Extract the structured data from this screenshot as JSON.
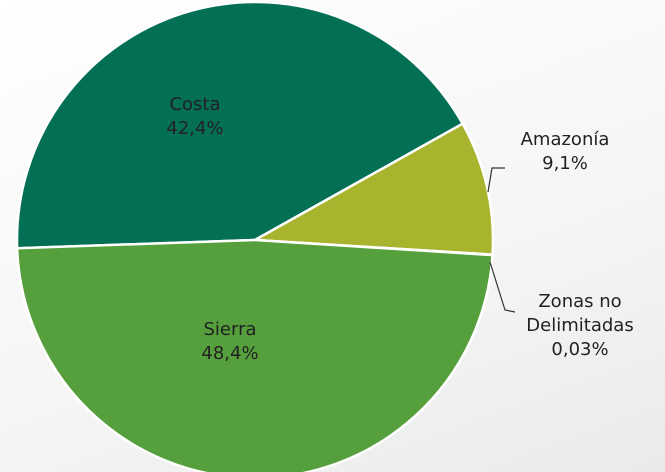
{
  "chart_data": {
    "type": "pie",
    "categories": [
      "Costa",
      "Amazonía",
      "Zonas no Delimitadas",
      "Sierra"
    ],
    "values": [
      42.4,
      9.1,
      0.03,
      48.4
    ],
    "value_labels": [
      "42,4%",
      "9,1%",
      "0,03%",
      "48,4%"
    ],
    "colors": [
      "#036f55",
      "#a8b42e",
      "#cfd6a0",
      "#55a03c"
    ]
  }
}
